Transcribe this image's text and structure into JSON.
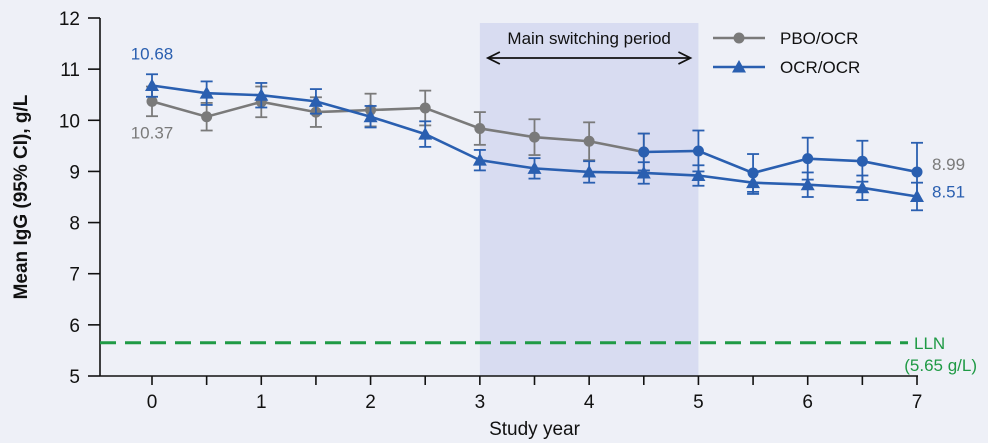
{
  "chart_data": {
    "type": "line",
    "title": "",
    "xlabel": "Study year",
    "ylabel": "Mean IgG (95% CI), g/L",
    "xlim": [
      0,
      7
    ],
    "ylim": [
      5,
      12
    ],
    "x_ticks": [
      0,
      1,
      2,
      3,
      4,
      5,
      6,
      7
    ],
    "y_ticks": [
      5,
      6,
      7,
      8,
      9,
      10,
      11,
      12
    ],
    "legend": {
      "position": "top-right"
    },
    "shaded_region": {
      "label": "Main switching period",
      "x_start": 3,
      "x_end": 5,
      "color": "#d8dcf1"
    },
    "reference_line": {
      "label": "LLN",
      "sublabel": "(5.65 g/L)",
      "y": 5.65,
      "color": "#1f9a45"
    },
    "series": [
      {
        "name": "PBO/OCR",
        "marker": "circle",
        "color": "#7a7a7a",
        "points": [
          {
            "x": 0,
            "y": 10.37,
            "lo": 10.08,
            "hi": 10.66
          },
          {
            "x": 0.5,
            "y": 10.07,
            "lo": 9.8,
            "hi": 10.34
          },
          {
            "x": 1,
            "y": 10.36,
            "lo": 10.06,
            "hi": 10.66
          },
          {
            "x": 1.5,
            "y": 10.16,
            "lo": 9.87,
            "hi": 10.45
          },
          {
            "x": 2,
            "y": 10.2,
            "lo": 9.88,
            "hi": 10.52
          },
          {
            "x": 2.5,
            "y": 10.24,
            "lo": 9.9,
            "hi": 10.58
          },
          {
            "x": 3,
            "y": 9.84,
            "lo": 9.52,
            "hi": 10.16
          },
          {
            "x": 3.5,
            "y": 9.67,
            "lo": 9.32,
            "hi": 10.02
          },
          {
            "x": 4,
            "y": 9.59,
            "lo": 9.22,
            "hi": 9.96
          },
          {
            "x": 4.5,
            "y": 9.38,
            "lo": 9.02,
            "hi": 9.74
          }
        ]
      },
      {
        "name": "OCR/OCR",
        "marker": "triangle",
        "color": "#2a5fb0",
        "points": [
          {
            "x": 0,
            "y": 10.68,
            "lo": 10.46,
            "hi": 10.9
          },
          {
            "x": 0.5,
            "y": 10.53,
            "lo": 10.3,
            "hi": 10.76
          },
          {
            "x": 1,
            "y": 10.49,
            "lo": 10.25,
            "hi": 10.73
          },
          {
            "x": 1.5,
            "y": 10.37,
            "lo": 10.13,
            "hi": 10.61
          },
          {
            "x": 2,
            "y": 10.07,
            "lo": 9.86,
            "hi": 10.28
          },
          {
            "x": 2.5,
            "y": 9.73,
            "lo": 9.48,
            "hi": 9.98
          },
          {
            "x": 3,
            "y": 9.22,
            "lo": 9.02,
            "hi": 9.42
          },
          {
            "x": 3.5,
            "y": 9.06,
            "lo": 8.86,
            "hi": 9.26
          },
          {
            "x": 4,
            "y": 8.99,
            "lo": 8.78,
            "hi": 9.2
          },
          {
            "x": 4.5,
            "y": 8.97,
            "lo": 8.76,
            "hi": 9.18
          },
          {
            "x": 5,
            "y": 8.92,
            "lo": 8.72,
            "hi": 9.12
          },
          {
            "x": 5.5,
            "y": 8.78,
            "lo": 8.56,
            "hi": 9.0
          },
          {
            "x": 6,
            "y": 8.74,
            "lo": 8.5,
            "hi": 8.98
          },
          {
            "x": 6.5,
            "y": 8.68,
            "lo": 8.44,
            "hi": 8.92
          },
          {
            "x": 7,
            "y": 8.51,
            "lo": 8.24,
            "hi": 8.78
          }
        ]
      },
      {
        "name": "",
        "marker": "circle",
        "color": "#2a5fb0",
        "points": [
          {
            "x": 4.5,
            "y": 9.38,
            "lo": 9.02,
            "hi": 9.74
          },
          {
            "x": 5,
            "y": 9.4,
            "lo": 9.0,
            "hi": 9.8
          },
          {
            "x": 5.5,
            "y": 8.97,
            "lo": 8.6,
            "hi": 9.34
          },
          {
            "x": 6,
            "y": 9.25,
            "lo": 8.84,
            "hi": 9.66
          },
          {
            "x": 6.5,
            "y": 9.2,
            "lo": 8.8,
            "hi": 9.6
          },
          {
            "x": 7,
            "y": 8.99,
            "lo": 8.42,
            "hi": 9.56
          }
        ]
      }
    ],
    "annotations": [
      {
        "text": "10.68",
        "color": "#2a5fb0"
      },
      {
        "text": "10.37",
        "color": "#7a7a7a"
      },
      {
        "text": "8.99",
        "color": "#7a7a7a"
      },
      {
        "text": "8.51",
        "color": "#2a5fb0"
      }
    ]
  }
}
